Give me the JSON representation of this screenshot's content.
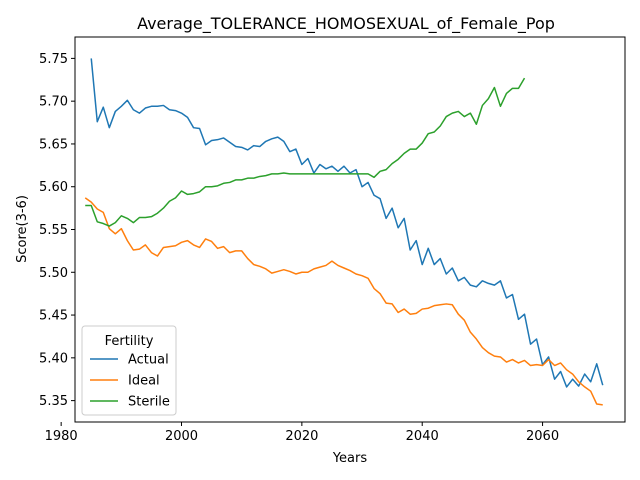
{
  "chart_data": {
    "type": "line",
    "title": "Average_TOLERANCE_HOMOSEXUAL_of_Female_Pop",
    "xlabel": "Years",
    "ylabel": "Score(3-6)",
    "xlim": [
      1982.3,
      2073.7
    ],
    "ylim": [
      5.325,
      5.775
    ],
    "x_ticks": [
      1980,
      2000,
      2020,
      2040,
      2060
    ],
    "y_ticks": [
      5.35,
      5.4,
      5.45,
      5.5,
      5.55,
      5.6,
      5.65,
      5.7,
      5.75
    ],
    "grid": false,
    "legend": {
      "title": "Fertility",
      "placement": "lower-left"
    },
    "series": [
      {
        "name": "Actual",
        "color": "#1f77b4",
        "x": [
          1985,
          1986,
          1987,
          1988,
          1989,
          1990,
          1991,
          1992,
          1993,
          1994,
          1995,
          1996,
          1997,
          1998,
          1999,
          2000,
          2001,
          2002,
          2003,
          2004,
          2005,
          2006,
          2007,
          2008,
          2009,
          2010,
          2011,
          2012,
          2013,
          2014,
          2015,
          2016,
          2017,
          2018,
          2019,
          2020,
          2021,
          2022,
          2023,
          2024,
          2025,
          2026,
          2027,
          2028,
          2029,
          2030,
          2031,
          2032,
          2033,
          2034,
          2035,
          2036,
          2037,
          2038,
          2039,
          2040,
          2041,
          2042,
          2043,
          2044,
          2045,
          2046,
          2047,
          2048,
          2049,
          2050,
          2051,
          2052,
          2053,
          2054,
          2055,
          2056,
          2057,
          2058,
          2059,
          2060,
          2061,
          2062,
          2063,
          2064,
          2065,
          2066,
          2067,
          2068,
          2069,
          2070
        ],
        "y": [
          5.75,
          5.676,
          5.693,
          5.669,
          5.688,
          5.694,
          5.701,
          5.69,
          5.686,
          5.692,
          5.694,
          5.694,
          5.695,
          5.69,
          5.689,
          5.686,
          5.681,
          5.669,
          5.668,
          5.649,
          5.654,
          5.655,
          5.657,
          5.652,
          5.647,
          5.646,
          5.643,
          5.648,
          5.647,
          5.653,
          5.656,
          5.658,
          5.653,
          5.641,
          5.644,
          5.626,
          5.633,
          5.616,
          5.626,
          5.621,
          5.624,
          5.618,
          5.624,
          5.616,
          5.62,
          5.6,
          5.605,
          5.59,
          5.586,
          5.563,
          5.575,
          5.552,
          5.563,
          5.526,
          5.537,
          5.509,
          5.528,
          5.509,
          5.516,
          5.498,
          5.505,
          5.49,
          5.494,
          5.485,
          5.483,
          5.49,
          5.487,
          5.485,
          5.49,
          5.47,
          5.474,
          5.445,
          5.451,
          5.416,
          5.422,
          5.392,
          5.401,
          5.375,
          5.384,
          5.366,
          5.375,
          5.367,
          5.381,
          5.372,
          5.393,
          5.368
        ]
      },
      {
        "name": "Ideal",
        "color": "#ff7f0e",
        "x": [
          1984,
          1985,
          1986,
          1987,
          1988,
          1989,
          1990,
          1991,
          1992,
          1993,
          1994,
          1995,
          1996,
          1997,
          1998,
          1999,
          2000,
          2001,
          2002,
          2003,
          2004,
          2005,
          2006,
          2007,
          2008,
          2009,
          2010,
          2011,
          2012,
          2013,
          2014,
          2015,
          2016,
          2017,
          2018,
          2019,
          2020,
          2021,
          2022,
          2023,
          2024,
          2025,
          2026,
          2027,
          2028,
          2029,
          2030,
          2031,
          2032,
          2033,
          2034,
          2035,
          2036,
          2037,
          2038,
          2039,
          2040,
          2041,
          2042,
          2043,
          2044,
          2045,
          2046,
          2047,
          2048,
          2049,
          2050,
          2051,
          2052,
          2053,
          2054,
          2055,
          2056,
          2057,
          2058,
          2059,
          2060,
          2061,
          2062,
          2063,
          2064,
          2065,
          2066,
          2067,
          2068,
          2069,
          2070
        ],
        "y": [
          5.587,
          5.582,
          5.574,
          5.57,
          5.551,
          5.545,
          5.551,
          5.537,
          5.526,
          5.527,
          5.532,
          5.523,
          5.519,
          5.529,
          5.53,
          5.531,
          5.535,
          5.537,
          5.532,
          5.529,
          5.539,
          5.536,
          5.528,
          5.53,
          5.523,
          5.525,
          5.525,
          5.516,
          5.509,
          5.507,
          5.504,
          5.499,
          5.501,
          5.503,
          5.501,
          5.498,
          5.5,
          5.5,
          5.504,
          5.506,
          5.508,
          5.513,
          5.508,
          5.505,
          5.502,
          5.498,
          5.496,
          5.493,
          5.481,
          5.475,
          5.464,
          5.463,
          5.453,
          5.457,
          5.451,
          5.452,
          5.457,
          5.458,
          5.461,
          5.462,
          5.463,
          5.462,
          5.451,
          5.444,
          5.43,
          5.422,
          5.412,
          5.406,
          5.402,
          5.401,
          5.395,
          5.398,
          5.394,
          5.397,
          5.391,
          5.392,
          5.391,
          5.398,
          5.391,
          5.394,
          5.386,
          5.381,
          5.372,
          5.366,
          5.361,
          5.346,
          5.345
        ]
      },
      {
        "name": "Sterile",
        "color": "#2ca02c",
        "x": [
          1984,
          1985,
          1986,
          1987,
          1988,
          1989,
          1990,
          1991,
          1992,
          1993,
          1994,
          1995,
          1996,
          1997,
          1998,
          1999,
          2000,
          2001,
          2002,
          2003,
          2004,
          2005,
          2006,
          2007,
          2008,
          2009,
          2010,
          2011,
          2012,
          2013,
          2014,
          2015,
          2016,
          2017,
          2018,
          2019,
          2020,
          2021,
          2022,
          2023,
          2024,
          2025,
          2026,
          2027,
          2028,
          2029,
          2030,
          2031,
          2032,
          2033,
          2034,
          2035,
          2036,
          2037,
          2038,
          2039,
          2040,
          2041,
          2042,
          2043,
          2044,
          2045,
          2046,
          2047,
          2048,
          2049,
          2050,
          2051,
          2052,
          2053,
          2054,
          2055,
          2056,
          2057
        ],
        "y": [
          5.578,
          5.578,
          5.559,
          5.557,
          5.554,
          5.558,
          5.566,
          5.563,
          5.558,
          5.564,
          5.564,
          5.565,
          5.569,
          5.575,
          5.583,
          5.587,
          5.595,
          5.591,
          5.592,
          5.594,
          5.6,
          5.6,
          5.601,
          5.604,
          5.605,
          5.608,
          5.608,
          5.61,
          5.61,
          5.612,
          5.613,
          5.615,
          5.615,
          5.616,
          5.615,
          5.615,
          5.615,
          5.615,
          5.615,
          5.615,
          5.615,
          5.615,
          5.615,
          5.615,
          5.615,
          5.615,
          5.615,
          5.615,
          5.611,
          5.618,
          5.62,
          5.627,
          5.632,
          5.639,
          5.644,
          5.644,
          5.651,
          5.662,
          5.664,
          5.671,
          5.682,
          5.686,
          5.688,
          5.682,
          5.686,
          5.673,
          5.695,
          5.703,
          5.716,
          5.694,
          5.709,
          5.715,
          5.715,
          5.727
        ]
      }
    ]
  }
}
